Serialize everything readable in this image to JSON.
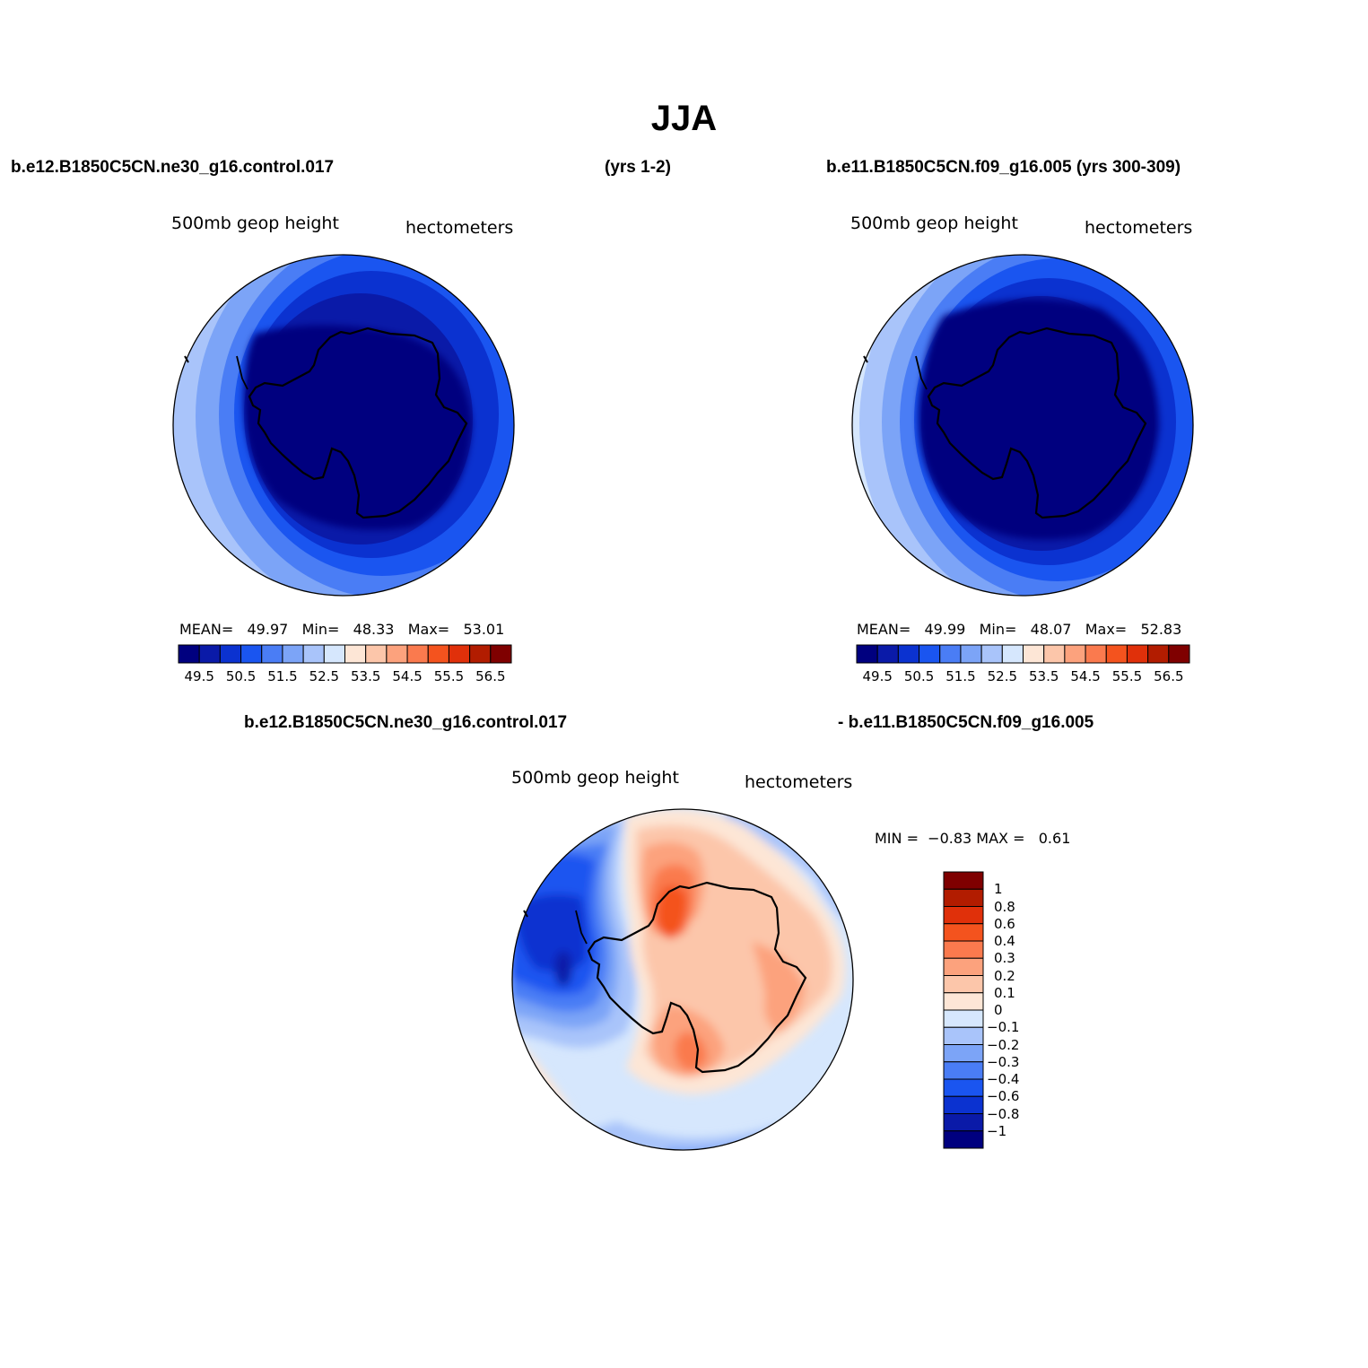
{
  "title": "JJA",
  "top_left": {
    "case_title": "b.e12.B1850C5CN.ne30_g16.control.017",
    "years": "(yrs 1-2)",
    "variable": "500mb geop height",
    "units": "hectometers",
    "mean_label": "MEAN=",
    "mean": "49.97",
    "min_label": "Min=",
    "min": "48.33",
    "max_label": "Max=",
    "max": "53.01"
  },
  "top_right": {
    "case_title": "b.e11.B1850C5CN.f09_g16.005 (yrs 300-309)",
    "variable": "500mb geop height",
    "units": "hectometers",
    "mean_label": "MEAN=",
    "mean": "49.99",
    "min_label": "Min=",
    "min": "48.07",
    "max_label": "Max=",
    "max": "52.83"
  },
  "bottom": {
    "case_left": "b.e12.B1850C5CN.ne30_g16.control.017",
    "case_right": "- b.e11.B1850C5CN.f09_g16.005",
    "variable": "500mb geop height",
    "units": "hectometers",
    "min_label": "MIN =",
    "min": "−0.83",
    "max_label": "MAX =",
    "max": "0.61"
  },
  "colorbar_abs": {
    "colors": [
      "#00007f",
      "#0a1aa8",
      "#0b32d0",
      "#1a55f0",
      "#4a7df5",
      "#7ca4f7",
      "#a9c4fa",
      "#d6e7fd",
      "#fde6d6",
      "#fcc6aa",
      "#fca27d",
      "#fa7a4e",
      "#f4531e",
      "#e0300a",
      "#b21c00",
      "#7f0000"
    ],
    "ticks": [
      "49.5",
      "50.5",
      "51.5",
      "52.5",
      "53.5",
      "54.5",
      "55.5",
      "56.5"
    ]
  },
  "colorbar_diff": {
    "colors": [
      "#00007f",
      "#0a1aa8",
      "#0b32d0",
      "#1a55f0",
      "#4a7df5",
      "#7ca4f7",
      "#a9c4fa",
      "#d6e7fd",
      "#fde6d6",
      "#fcc6aa",
      "#fca27d",
      "#fa7a4e",
      "#f4531e",
      "#e0300a",
      "#b21c00",
      "#7f0000"
    ],
    "ticks": [
      "1",
      "0.8",
      "0.6",
      "0.4",
      "0.3",
      "0.2",
      "0.1",
      "0",
      "−0.1",
      "−0.2",
      "−0.3",
      "−0.4",
      "−0.6",
      "−0.8",
      "−1"
    ]
  }
}
